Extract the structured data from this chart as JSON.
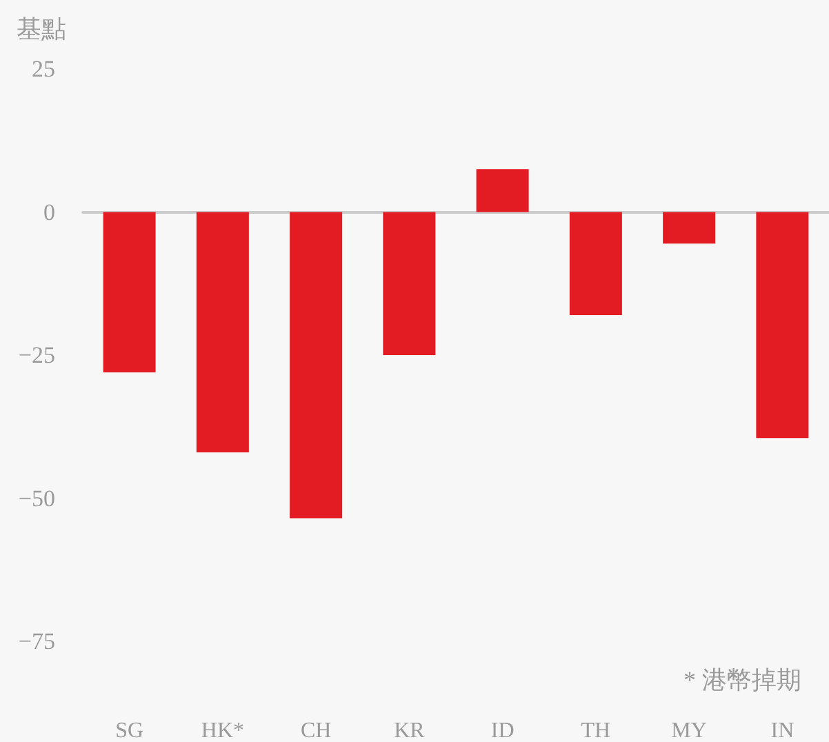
{
  "chart_data": {
    "type": "bar",
    "ylabel": "基點",
    "categories": [
      "SG",
      "HK*",
      "CH",
      "KR",
      "ID",
      "TH",
      "MY",
      "IN"
    ],
    "values": [
      -28,
      -42,
      -53.5,
      -25,
      7.5,
      -18,
      -5.5,
      -39.5
    ],
    "color": "#e31b23",
    "ylim": [
      -75,
      25
    ],
    "yticks": [
      -75,
      -50,
      -25,
      0,
      25
    ],
    "annotations": [
      "* 港幣掉期"
    ]
  }
}
